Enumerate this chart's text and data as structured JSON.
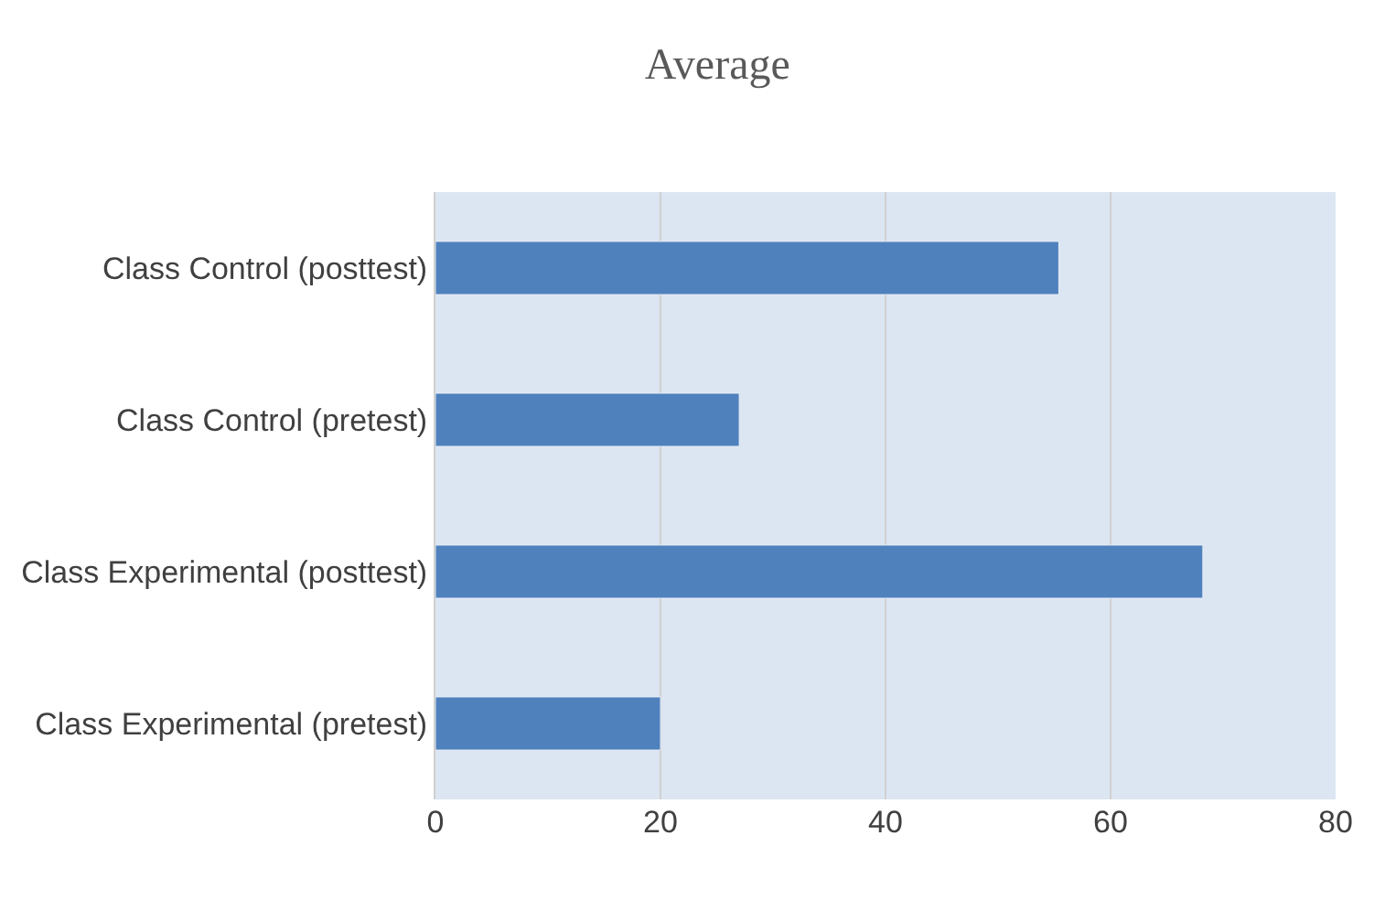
{
  "chart_data": {
    "type": "bar",
    "orientation": "horizontal",
    "title": "Average",
    "categories": [
      "Class Control (posttest)",
      "Class Control (pretest)",
      "Class Experimental (posttest)",
      "Class Experimental (pretest)"
    ],
    "values": [
      55.4,
      27,
      68.2,
      20
    ],
    "color": "#4f81bd",
    "xlim": [
      0,
      80
    ],
    "xticks": [
      0,
      20,
      40,
      60,
      80
    ],
    "grid": "x",
    "legend": false
  }
}
